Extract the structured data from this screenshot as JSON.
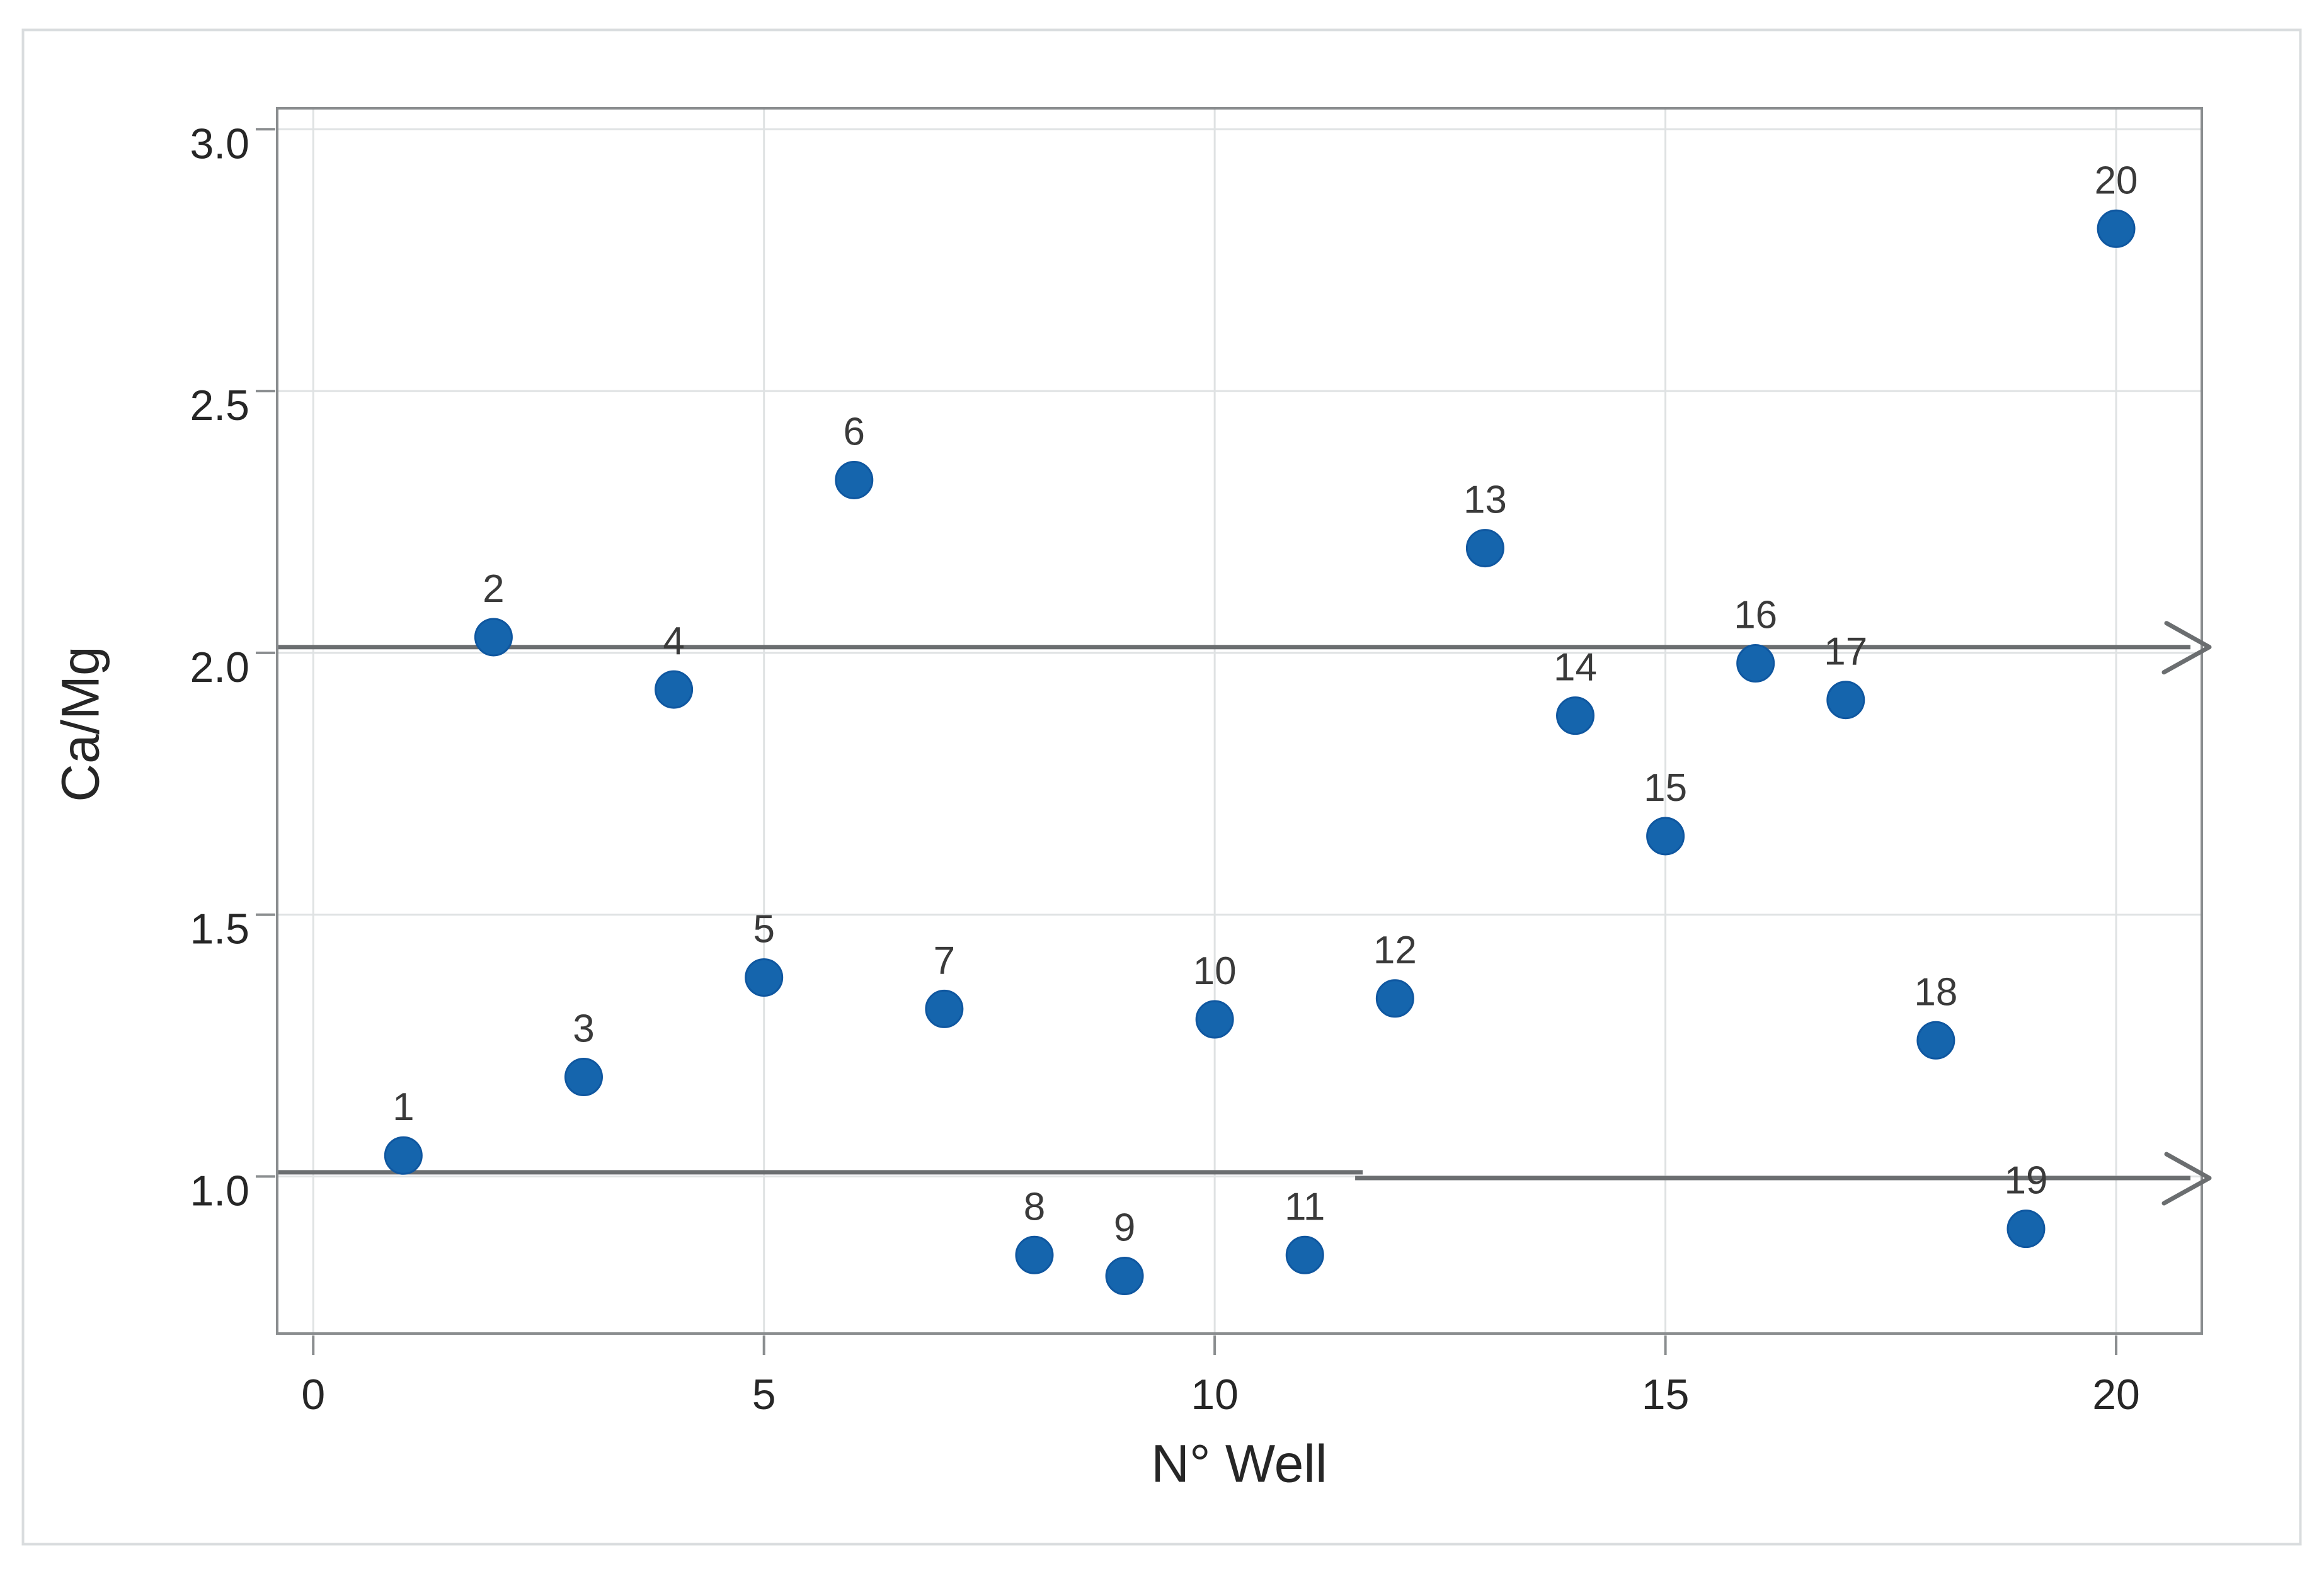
{
  "chart_data": {
    "type": "scatter",
    "title": "",
    "xlabel": "N° Well",
    "ylabel": "Ca/Mg",
    "x": [
      1,
      2,
      3,
      4,
      5,
      6,
      7,
      8,
      9,
      10,
      11,
      12,
      13,
      14,
      15,
      16,
      17,
      18,
      19,
      20
    ],
    "y": [
      1.04,
      2.03,
      1.19,
      1.93,
      1.38,
      2.33,
      1.32,
      0.85,
      0.81,
      1.3,
      0.85,
      1.34,
      2.2,
      1.88,
      1.65,
      1.98,
      1.91,
      1.26,
      0.9,
      2.81
    ],
    "point_labels": [
      "1",
      "2",
      "3",
      "4",
      "5",
      "6",
      "7",
      "8",
      "9",
      "10",
      "11",
      "12",
      "13",
      "14",
      "15",
      "16",
      "17",
      "18",
      "19",
      "20"
    ],
    "x_tick_values": [
      0,
      5,
      10,
      15,
      20
    ],
    "x_tick_labels": [
      "0",
      "5",
      "10",
      "15",
      "20"
    ],
    "y_tick_values": [
      1.0,
      1.5,
      2.0,
      2.5,
      3.0
    ],
    "y_tick_labels": [
      "1.0",
      "1.5",
      "2.0",
      "2.5",
      "3.0"
    ],
    "xlim": [
      -0.4,
      20.95
    ],
    "ylim": [
      0.7,
      3.04
    ],
    "grid": "on",
    "legend": "none",
    "annotations": [
      {
        "type": "arrow-right",
        "y": 2.011,
        "description": "horizontal arrow at Ca/Mg = 2.0"
      },
      {
        "type": "arrow-right",
        "y_left": 1.008,
        "y_right": 0.997,
        "split_x": 11.6,
        "description": "horizontal arrow at Ca/Mg = 1.0"
      }
    ],
    "colors": {
      "marker_fill": "#1565ad",
      "marker_edge": "#0f57a0",
      "grid": "#dfe2e3",
      "axis": "#8a8d8f",
      "arrow": "#6b6e70",
      "tick_text": "#262626",
      "point_label_text": "#3a3a3a",
      "figure_frame": "#d9dcde",
      "background": "#ffffff"
    }
  }
}
